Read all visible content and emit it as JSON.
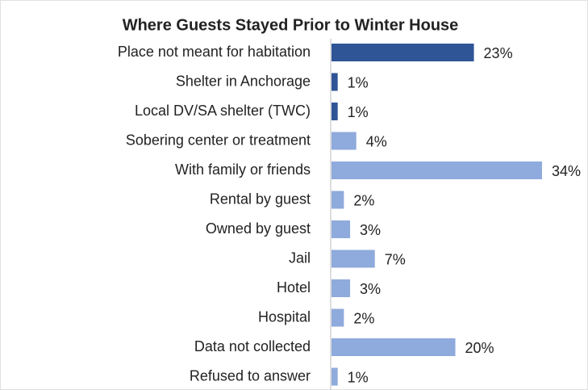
{
  "chart_data": {
    "type": "barh",
    "title": "Where Guests Stayed Prior to Winter House",
    "categories": [
      "Place not meant for habitation",
      "Shelter in Anchorage",
      "Local DV/SA shelter (TWC)",
      "Sobering center or treatment",
      "With family or friends",
      "Rental by guest",
      "Owned by guest",
      "Jail",
      "Hotel",
      "Hospital",
      "Data not collected",
      "Refused to answer"
    ],
    "values": [
      23,
      1,
      1,
      4,
      34,
      2,
      3,
      7,
      3,
      2,
      20,
      1
    ],
    "value_labels": [
      "23%",
      "1%",
      "1%",
      "4%",
      "34%",
      "2%",
      "3%",
      "7%",
      "3%",
      "2%",
      "20%",
      "1%"
    ],
    "colors": [
      "#2f5597",
      "#2f5597",
      "#2f5597",
      "#8faadc",
      "#8faadc",
      "#8faadc",
      "#8faadc",
      "#8faadc",
      "#8faadc",
      "#8faadc",
      "#8faadc",
      "#8faadc"
    ]
  }
}
